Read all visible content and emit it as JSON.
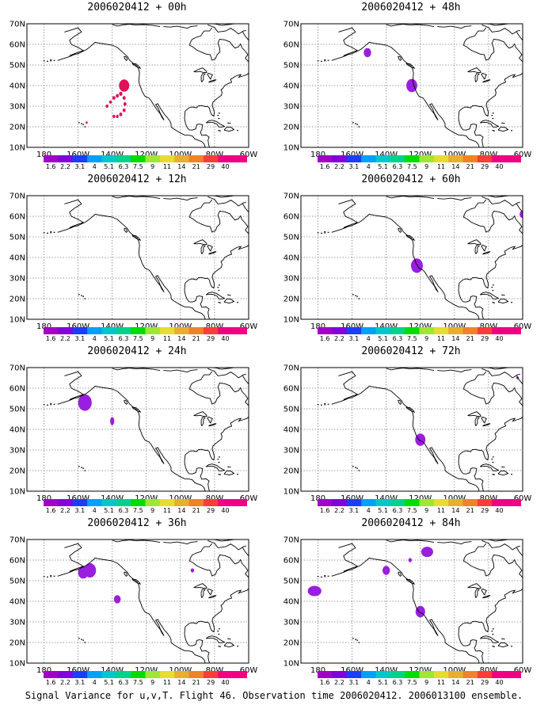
{
  "caption": "Signal Variance for u,v,T. Flight 46. Observation time 2006020412. 2006013100 ensemble.",
  "colors": {
    "colorbar": [
      "#a000c8",
      "#8200dc",
      "#1e3cff",
      "#00a0ff",
      "#00c8c8",
      "#00d28c",
      "#00dc00",
      "#a0e632",
      "#e6dc32",
      "#e6af2d",
      "#f08228",
      "#fa3c3c",
      "#f00082"
    ],
    "signal_purple": "#9a1ee0",
    "signal_magenta": "#e0105a",
    "coast": "#000000",
    "grid": "#808080"
  },
  "chart_data": {
    "type": "map",
    "map": {
      "lon_range": [
        -190,
        -60
      ],
      "lat_range": [
        10,
        70
      ],
      "lon_ticks": [
        -180,
        -160,
        -140,
        -120,
        -100,
        -80,
        -60
      ],
      "lon_tick_labels": [
        "180",
        "160W",
        "140W",
        "120W",
        "100W",
        "80W",
        "60W"
      ],
      "lat_ticks": [
        10,
        20,
        30,
        40,
        50,
        60,
        70
      ],
      "lat_tick_labels": [
        "10N",
        "20N",
        "30N",
        "40N",
        "50N",
        "60N",
        "70N"
      ],
      "grid": "dotted"
    },
    "colorbar_labels": [
      "1.6",
      "2.2",
      "3.1",
      "4",
      "5.1",
      "6.3",
      "7.5",
      "9",
      "11",
      "14",
      "21",
      "29",
      "40"
    ],
    "panels": [
      {
        "title": "2006020412 + 00h",
        "col": 0,
        "row": 0,
        "blobs": [
          {
            "lon": -133,
            "lat": 40,
            "r": 3,
            "color": "magenta"
          },
          {
            "lon": -143,
            "lat": 30,
            "r": 0.8,
            "color": "magenta"
          },
          {
            "lon": -141,
            "lat": 32,
            "r": 0.8,
            "color": "magenta"
          },
          {
            "lon": -139,
            "lat": 34,
            "r": 0.9,
            "color": "magenta"
          },
          {
            "lon": -137,
            "lat": 35,
            "r": 0.9,
            "color": "magenta"
          },
          {
            "lon": -135,
            "lat": 36,
            "r": 1,
            "color": "magenta"
          },
          {
            "lon": -133,
            "lat": 34,
            "r": 0.9,
            "color": "magenta"
          },
          {
            "lon": -132.5,
            "lat": 31,
            "r": 0.9,
            "color": "magenta"
          },
          {
            "lon": -133,
            "lat": 28,
            "r": 0.9,
            "color": "magenta"
          },
          {
            "lon": -135,
            "lat": 26,
            "r": 0.9,
            "color": "magenta"
          },
          {
            "lon": -137,
            "lat": 25,
            "r": 0.8,
            "color": "magenta"
          },
          {
            "lon": -139,
            "lat": 25,
            "r": 0.8,
            "color": "magenta"
          },
          {
            "lon": -155,
            "lat": 22,
            "r": 0.6,
            "color": "magenta"
          }
        ]
      },
      {
        "title": "2006020412 + 12h",
        "col": 0,
        "row": 1,
        "blobs": []
      },
      {
        "title": "2006020412 + 24h",
        "col": 0,
        "row": 2,
        "blobs": [
          {
            "lon": -156,
            "lat": 53,
            "r": 4,
            "color": "purple"
          },
          {
            "lon": -140,
            "lat": 44,
            "r": 2,
            "rx": 1.2,
            "color": "purple"
          }
        ]
      },
      {
        "title": "2006020412 + 36h",
        "col": 0,
        "row": 3,
        "blobs": [
          {
            "lon": -153,
            "lat": 55,
            "r": 3.5,
            "color": "purple"
          },
          {
            "lon": -157,
            "lat": 54,
            "r": 3,
            "color": "purple"
          },
          {
            "lon": -137,
            "lat": 41,
            "r": 2,
            "color": "purple"
          },
          {
            "lon": -93,
            "lat": 55,
            "r": 1,
            "color": "purple"
          }
        ]
      },
      {
        "title": "2006020412 + 48h",
        "col": 1,
        "row": 0,
        "blobs": [
          {
            "lon": -151,
            "lat": 56,
            "r": 2.2,
            "color": "purple"
          },
          {
            "lon": -125,
            "lat": 40,
            "r": 3.2,
            "color": "purple"
          }
        ]
      },
      {
        "title": "2006020412 + 60h",
        "col": 1,
        "row": 1,
        "blobs": [
          {
            "lon": -122,
            "lat": 36,
            "r": 3.5,
            "color": "purple"
          },
          {
            "lon": -60,
            "lat": 61,
            "r": 1.8,
            "color": "purple"
          }
        ]
      },
      {
        "title": "2006020412 + 72h",
        "col": 1,
        "row": 2,
        "blobs": [
          {
            "lon": -120,
            "lat": 35,
            "r": 3,
            "color": "purple"
          },
          {
            "lon": -63,
            "lat": 65,
            "r": 0.7,
            "color": "purple"
          }
        ]
      },
      {
        "title": "2006020412 + 84h",
        "col": 1,
        "row": 3,
        "blobs": [
          {
            "lon": -182,
            "lat": 45,
            "r": 2.5,
            "rx": 4,
            "color": "purple"
          },
          {
            "lon": -140,
            "lat": 55,
            "r": 2.2,
            "color": "purple"
          },
          {
            "lon": -116,
            "lat": 64,
            "r": 2.5,
            "rx": 3.5,
            "color": "purple"
          },
          {
            "lon": -126,
            "lat": 60,
            "r": 1,
            "color": "purple"
          },
          {
            "lon": -120,
            "lat": 35,
            "r": 2.8,
            "color": "purple"
          }
        ]
      }
    ]
  }
}
